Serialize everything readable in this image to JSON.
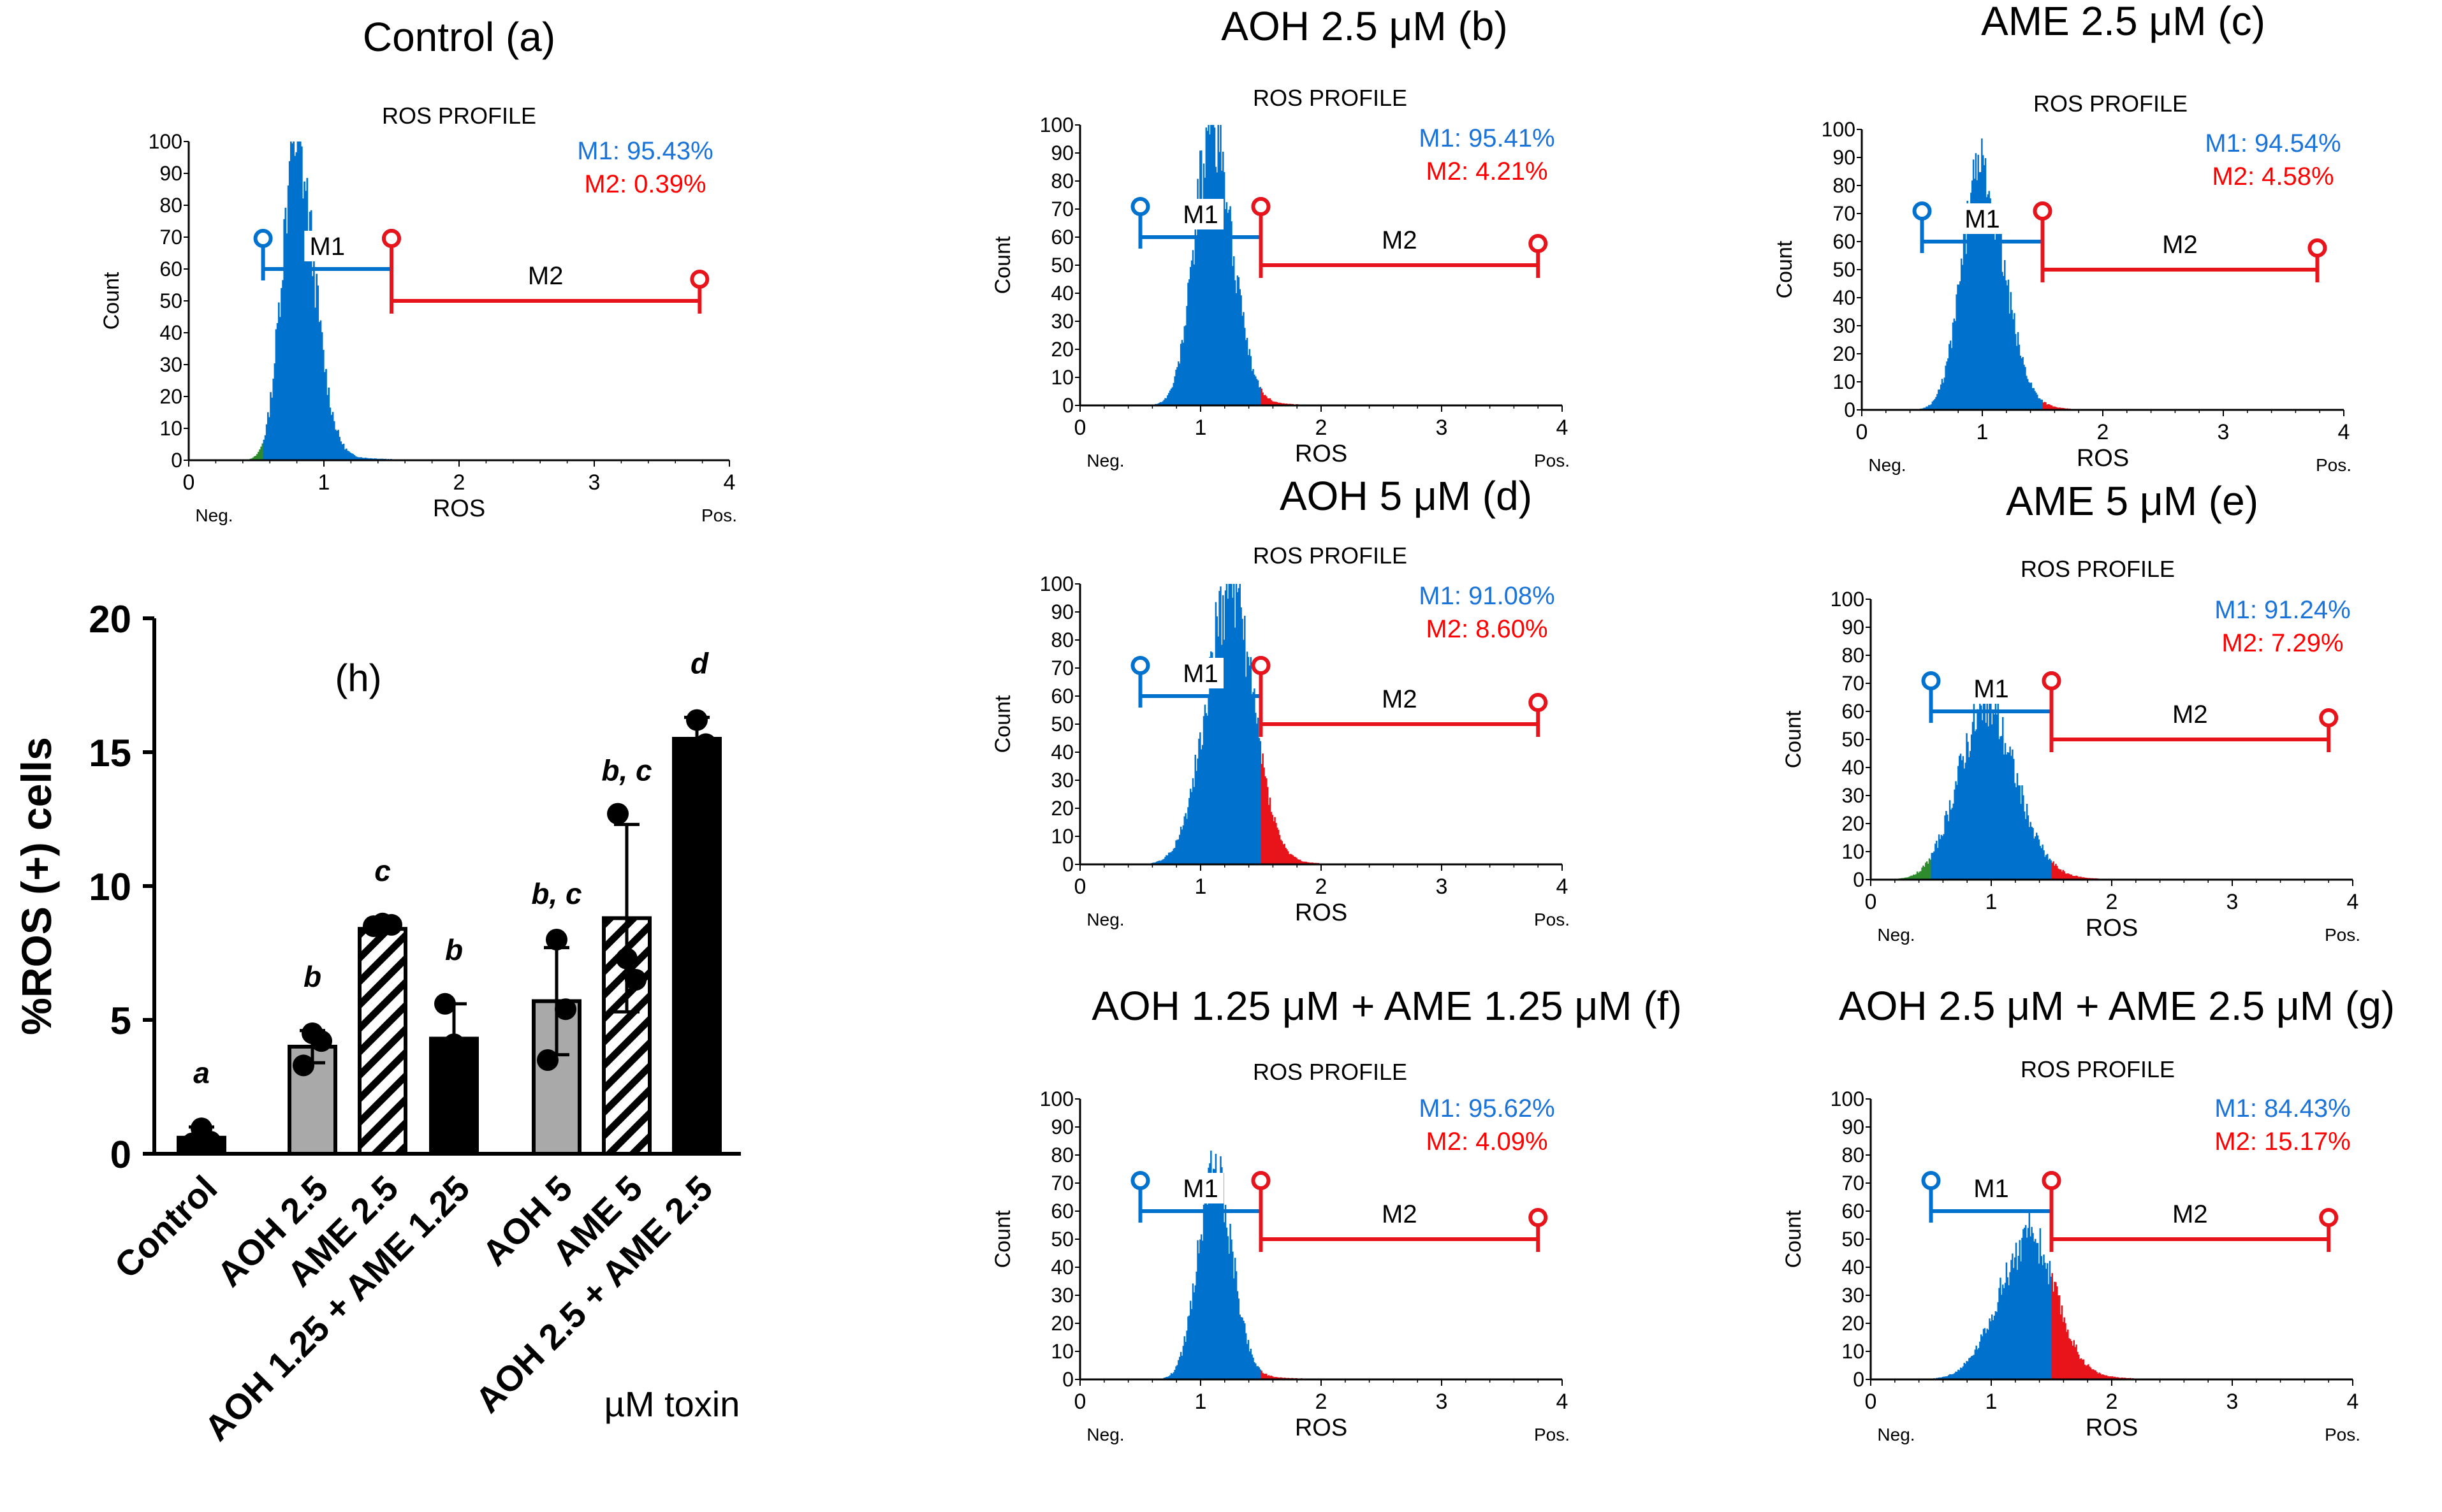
{
  "figure": {
    "description_units": "%",
    "colors": {
      "m1": "#0072CE",
      "m2": "#E8141B",
      "m1_label": "#1A73D9",
      "m2_label": "#FF0000",
      "neg_fill": "#2E8B2E",
      "axis": "#000000"
    }
  },
  "chart_data": [
    {
      "id": "a",
      "type": "histogram",
      "title": "Control (a)",
      "subtitle": "ROS PROFILE",
      "xlabel": "ROS",
      "ylabel": "Count",
      "neg_label": "Neg.",
      "pos_label": "Pos.",
      "xlim": [
        0,
        4
      ],
      "ylim": [
        0,
        100
      ],
      "xticks": [
        "0",
        "1",
        "2",
        "3",
        "4"
      ],
      "yticks": [
        "0",
        "10",
        "20",
        "30",
        "40",
        "50",
        "60",
        "70",
        "80",
        "90",
        "100"
      ],
      "m1_text": "M1: 95.43%",
      "m2_text": "M2: 0.39%",
      "m1_name": "M1",
      "m2_name": "M2",
      "gate_m1": {
        "start": 0.55,
        "end": 1.5,
        "y": 60
      },
      "gate_m2": {
        "start": 1.5,
        "end": 3.78,
        "y": 50
      },
      "peak": {
        "center": 0.78,
        "height": 100,
        "sigma_left": 0.1,
        "sigma_right": 0.14
      }
    },
    {
      "id": "b",
      "type": "histogram",
      "title": "AOH 2.5 μM (b)",
      "subtitle": "ROS PROFILE",
      "xlabel": "ROS",
      "ylabel": "Count",
      "neg_label": "Neg.",
      "pos_label": "Pos.",
      "xlim": [
        0,
        4
      ],
      "ylim": [
        0,
        100
      ],
      "xticks": [
        "0",
        "1",
        "2",
        "3",
        "4"
      ],
      "yticks": [
        "0",
        "10",
        "20",
        "30",
        "40",
        "50",
        "60",
        "70",
        "80",
        "90",
        "100"
      ],
      "m1_text": "M1: 95.41%",
      "m2_text": "M2: 4.21%",
      "m1_name": "M1",
      "m2_name": "M2",
      "gate_m1": {
        "start": 0.5,
        "end": 1.5,
        "y": 60
      },
      "gate_m2": {
        "start": 1.5,
        "end": 3.8,
        "y": 50
      },
      "peak": {
        "center": 1.08,
        "height": 100,
        "sigma_left": 0.14,
        "sigma_right": 0.17
      }
    },
    {
      "id": "c",
      "type": "histogram",
      "title": "AME 2.5 μM (c)",
      "subtitle": "ROS PROFILE",
      "xlabel": "ROS",
      "ylabel": "Count",
      "neg_label": "Neg.",
      "pos_label": "Pos.",
      "xlim": [
        0,
        4
      ],
      "ylim": [
        0,
        100
      ],
      "xticks": [
        "0",
        "1",
        "2",
        "3",
        "4"
      ],
      "yticks": [
        "0",
        "10",
        "20",
        "30",
        "40",
        "50",
        "60",
        "70",
        "80",
        "90",
        "100"
      ],
      "m1_text": "M1: 94.54%",
      "m2_text": "M2: 4.58%",
      "m1_name": "M1",
      "m2_name": "M2",
      "gate_m1": {
        "start": 0.5,
        "end": 1.5,
        "y": 60
      },
      "gate_m2": {
        "start": 1.5,
        "end": 3.78,
        "y": 50
      },
      "peak": {
        "center": 0.97,
        "height": 85,
        "sigma_left": 0.15,
        "sigma_right": 0.2
      }
    },
    {
      "id": "d",
      "type": "histogram",
      "title": "AOH 5 μM (d)",
      "subtitle": "ROS PROFILE",
      "xlabel": "ROS",
      "ylabel": "Count",
      "neg_label": "Neg.",
      "pos_label": "Pos.",
      "xlim": [
        0,
        4
      ],
      "ylim": [
        0,
        100
      ],
      "xticks": [
        "0",
        "1",
        "2",
        "3",
        "4"
      ],
      "yticks": [
        "0",
        "10",
        "20",
        "30",
        "40",
        "50",
        "60",
        "70",
        "80",
        "90",
        "100"
      ],
      "m1_text": "M1: 91.08%",
      "m2_text": "M2: 8.60%",
      "m1_name": "M1",
      "m2_name": "M2",
      "gate_m1": {
        "start": 0.5,
        "end": 1.5,
        "y": 60
      },
      "gate_m2": {
        "start": 1.5,
        "end": 3.8,
        "y": 50
      },
      "peak": {
        "center": 1.24,
        "height": 100,
        "sigma_left": 0.2,
        "sigma_right": 0.19
      }
    },
    {
      "id": "e",
      "type": "histogram",
      "title": "AME 5 μM (e)",
      "subtitle": "ROS PROFILE",
      "xlabel": "ROS",
      "ylabel": "Count",
      "neg_label": "Neg.",
      "pos_label": "Pos.",
      "xlim": [
        0,
        4
      ],
      "ylim": [
        0,
        100
      ],
      "xticks": [
        "0",
        "1",
        "2",
        "3",
        "4"
      ],
      "yticks": [
        "0",
        "10",
        "20",
        "30",
        "40",
        "50",
        "60",
        "70",
        "80",
        "90",
        "100"
      ],
      "m1_text": "M1: 91.24%",
      "m2_text": "M2: 7.29%",
      "m1_name": "M1",
      "m2_name": "M2",
      "gate_m1": {
        "start": 0.5,
        "end": 1.5,
        "y": 60
      },
      "gate_m2": {
        "start": 1.5,
        "end": 3.8,
        "y": 50
      },
      "peak": {
        "center": 0.93,
        "height": 60,
        "sigma_left": 0.22,
        "sigma_right": 0.26
      }
    },
    {
      "id": "f",
      "type": "histogram",
      "title": "AOH 1.25 μM + AME 1.25 μM (f)",
      "subtitle": "ROS PROFILE",
      "xlabel": "ROS",
      "ylabel": "Count",
      "neg_label": "Neg.",
      "pos_label": "Pos.",
      "xlim": [
        0,
        4
      ],
      "ylim": [
        0,
        100
      ],
      "xticks": [
        "0",
        "1",
        "2",
        "3",
        "4"
      ],
      "yticks": [
        "0",
        "10",
        "20",
        "30",
        "40",
        "50",
        "60",
        "70",
        "80",
        "90",
        "100"
      ],
      "m1_text": "M1: 95.62%",
      "m2_text": "M2: 4.09%",
      "m1_name": "M1",
      "m2_name": "M2",
      "gate_m1": {
        "start": 0.5,
        "end": 1.5,
        "y": 60
      },
      "gate_m2": {
        "start": 1.5,
        "end": 3.8,
        "y": 50
      },
      "peak": {
        "center": 1.1,
        "height": 76,
        "sigma_left": 0.13,
        "sigma_right": 0.15
      }
    },
    {
      "id": "g",
      "type": "histogram",
      "title": "AOH 2.5 μM + AME 2.5 μM (g)",
      "subtitle": "ROS PROFILE",
      "xlabel": "ROS",
      "ylabel": "Count",
      "neg_label": "Neg.",
      "pos_label": "Pos.",
      "xlim": [
        0,
        4
      ],
      "ylim": [
        0,
        100
      ],
      "xticks": [
        "0",
        "1",
        "2",
        "3",
        "4"
      ],
      "yticks": [
        "0",
        "10",
        "20",
        "30",
        "40",
        "50",
        "60",
        "70",
        "80",
        "90",
        "100"
      ],
      "m1_text": "M1: 84.43%",
      "m2_text": "M2: 15.17%",
      "m1_name": "M1",
      "m2_name": "M2",
      "gate_m1": {
        "start": 0.5,
        "end": 1.5,
        "y": 60
      },
      "gate_m2": {
        "start": 1.5,
        "end": 3.8,
        "y": 50
      },
      "peak": {
        "center": 1.3,
        "height": 50,
        "sigma_left": 0.25,
        "sigma_right": 0.22
      }
    },
    {
      "id": "h",
      "type": "bar",
      "panel_label": "(h)",
      "ylabel": "%ROS (+) cells",
      "xlabel": "µM toxin",
      "ylim": [
        0,
        20
      ],
      "yticks": [
        "0",
        "5",
        "10",
        "15",
        "20"
      ],
      "categories": [
        "Control",
        "AOH 2.5",
        "AME 2.5",
        "AOH 1.25 + AME 1.25",
        "AOH 5",
        "AME 5",
        "AOH 2.5 + AME 2.5"
      ],
      "values": [
        0.6,
        4.0,
        8.4,
        4.3,
        5.7,
        8.8,
        15.5
      ],
      "errors": [
        0.4,
        0.6,
        0.15,
        1.3,
        2.0,
        3.5,
        0.8
      ],
      "points": [
        [
          0.39,
          0.95,
          0.45
        ],
        [
          3.3,
          4.5,
          4.21
        ],
        [
          8.5,
          8.6,
          8.55
        ],
        [
          5.6,
          4.09,
          3.3
        ],
        [
          3.5,
          8.0,
          5.4
        ],
        [
          12.7,
          7.29,
          6.5
        ],
        [
          15.17,
          16.2,
          15.3
        ]
      ],
      "fills": [
        "black",
        "gray",
        "hatched",
        "black",
        "gray",
        "hatched",
        "black"
      ],
      "significance": [
        "a",
        "b",
        "c",
        "b",
        "b, c",
        "b, c",
        "d"
      ]
    }
  ]
}
